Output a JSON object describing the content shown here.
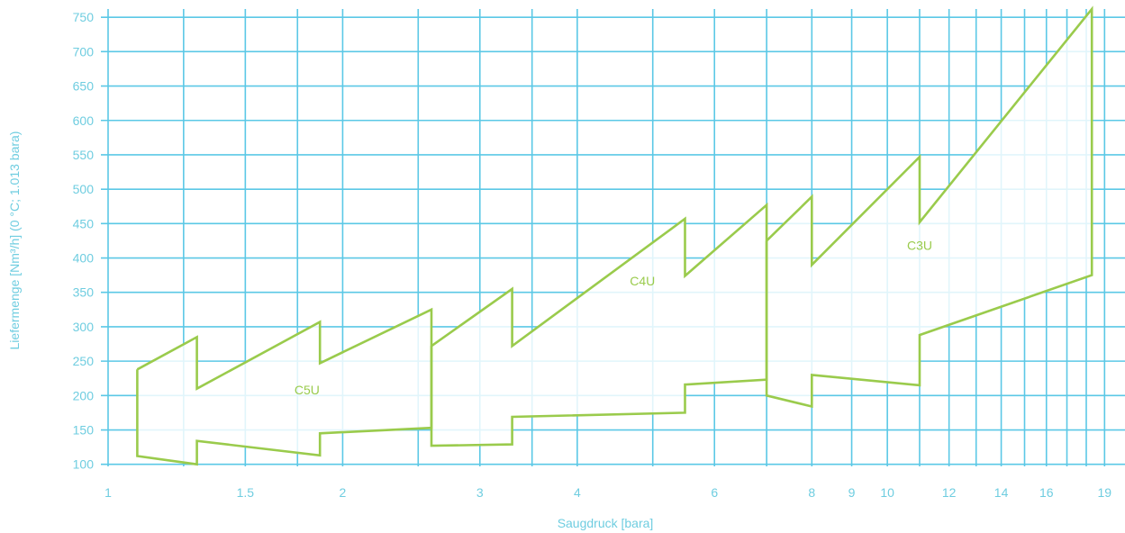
{
  "chart_data": {
    "type": "line",
    "title": "",
    "xlabel": "Saugdruck [bara]",
    "ylabel": "Liefermenge [Nm³/h] (0 °C; 1.013 bara)",
    "x_scale": "log",
    "xlim": [
      1,
      19.6
    ],
    "ylim": [
      97,
      762
    ],
    "x_ticks": [
      1,
      1.5,
      2,
      3,
      4,
      6,
      8,
      9,
      10,
      12,
      14,
      16,
      19
    ],
    "x_tick_labels": [
      "1",
      "1.5",
      "2",
      "3",
      "4",
      "6",
      "8",
      "9",
      "10",
      "12",
      "14",
      "16",
      "19"
    ],
    "y_ticks": [
      100,
      150,
      200,
      250,
      300,
      350,
      400,
      450,
      500,
      550,
      600,
      650,
      700,
      750
    ],
    "y_tick_labels": [
      "100",
      "150",
      "200",
      "250",
      "300",
      "350",
      "400",
      "450",
      "500",
      "550",
      "600",
      "650",
      "700",
      "750"
    ],
    "x_gridlines": [
      1,
      1.25,
      1.5,
      1.75,
      2,
      2.5,
      3,
      3.5,
      4,
      5,
      6,
      7,
      8,
      9,
      10,
      11,
      12,
      13,
      14,
      15,
      16,
      17,
      18,
      19
    ],
    "grid": true,
    "series_color": "#9acb4c",
    "grid_color": "#5bc8e6",
    "series": [
      {
        "name": "C5U",
        "label_at": [
          1.8,
          202
        ],
        "x": [
          1.09,
          1.3,
          1.3,
          1.87,
          1.87,
          2.6,
          2.6,
          1.87,
          1.87,
          1.3,
          1.3,
          1.09,
          1.09
        ],
        "y": [
          238,
          285,
          210,
          307,
          247,
          325,
          153,
          145,
          113,
          134,
          100,
          112,
          238
        ]
      },
      {
        "name": "C4U",
        "label_at": [
          4.85,
          360
        ],
        "x": [
          2.6,
          3.3,
          3.3,
          5.5,
          5.5,
          7.0,
          7.0,
          5.5,
          5.5,
          3.3,
          3.3,
          2.6,
          2.6
        ],
        "y": [
          272,
          355,
          272,
          457,
          374,
          477,
          223,
          216,
          175,
          169,
          129,
          127,
          272
        ]
      },
      {
        "name": "C3U",
        "label_at": [
          11.0,
          412
        ],
        "x": [
          7.0,
          8.0,
          8.0,
          11.0,
          11.0,
          18.3,
          18.3,
          11.0,
          11.0,
          8.0,
          8.0,
          7.0,
          7.0
        ],
        "y": [
          425,
          489,
          390,
          547,
          452,
          762,
          375,
          288,
          215,
          230,
          184,
          200,
          425
        ]
      }
    ],
    "legend": "none"
  }
}
